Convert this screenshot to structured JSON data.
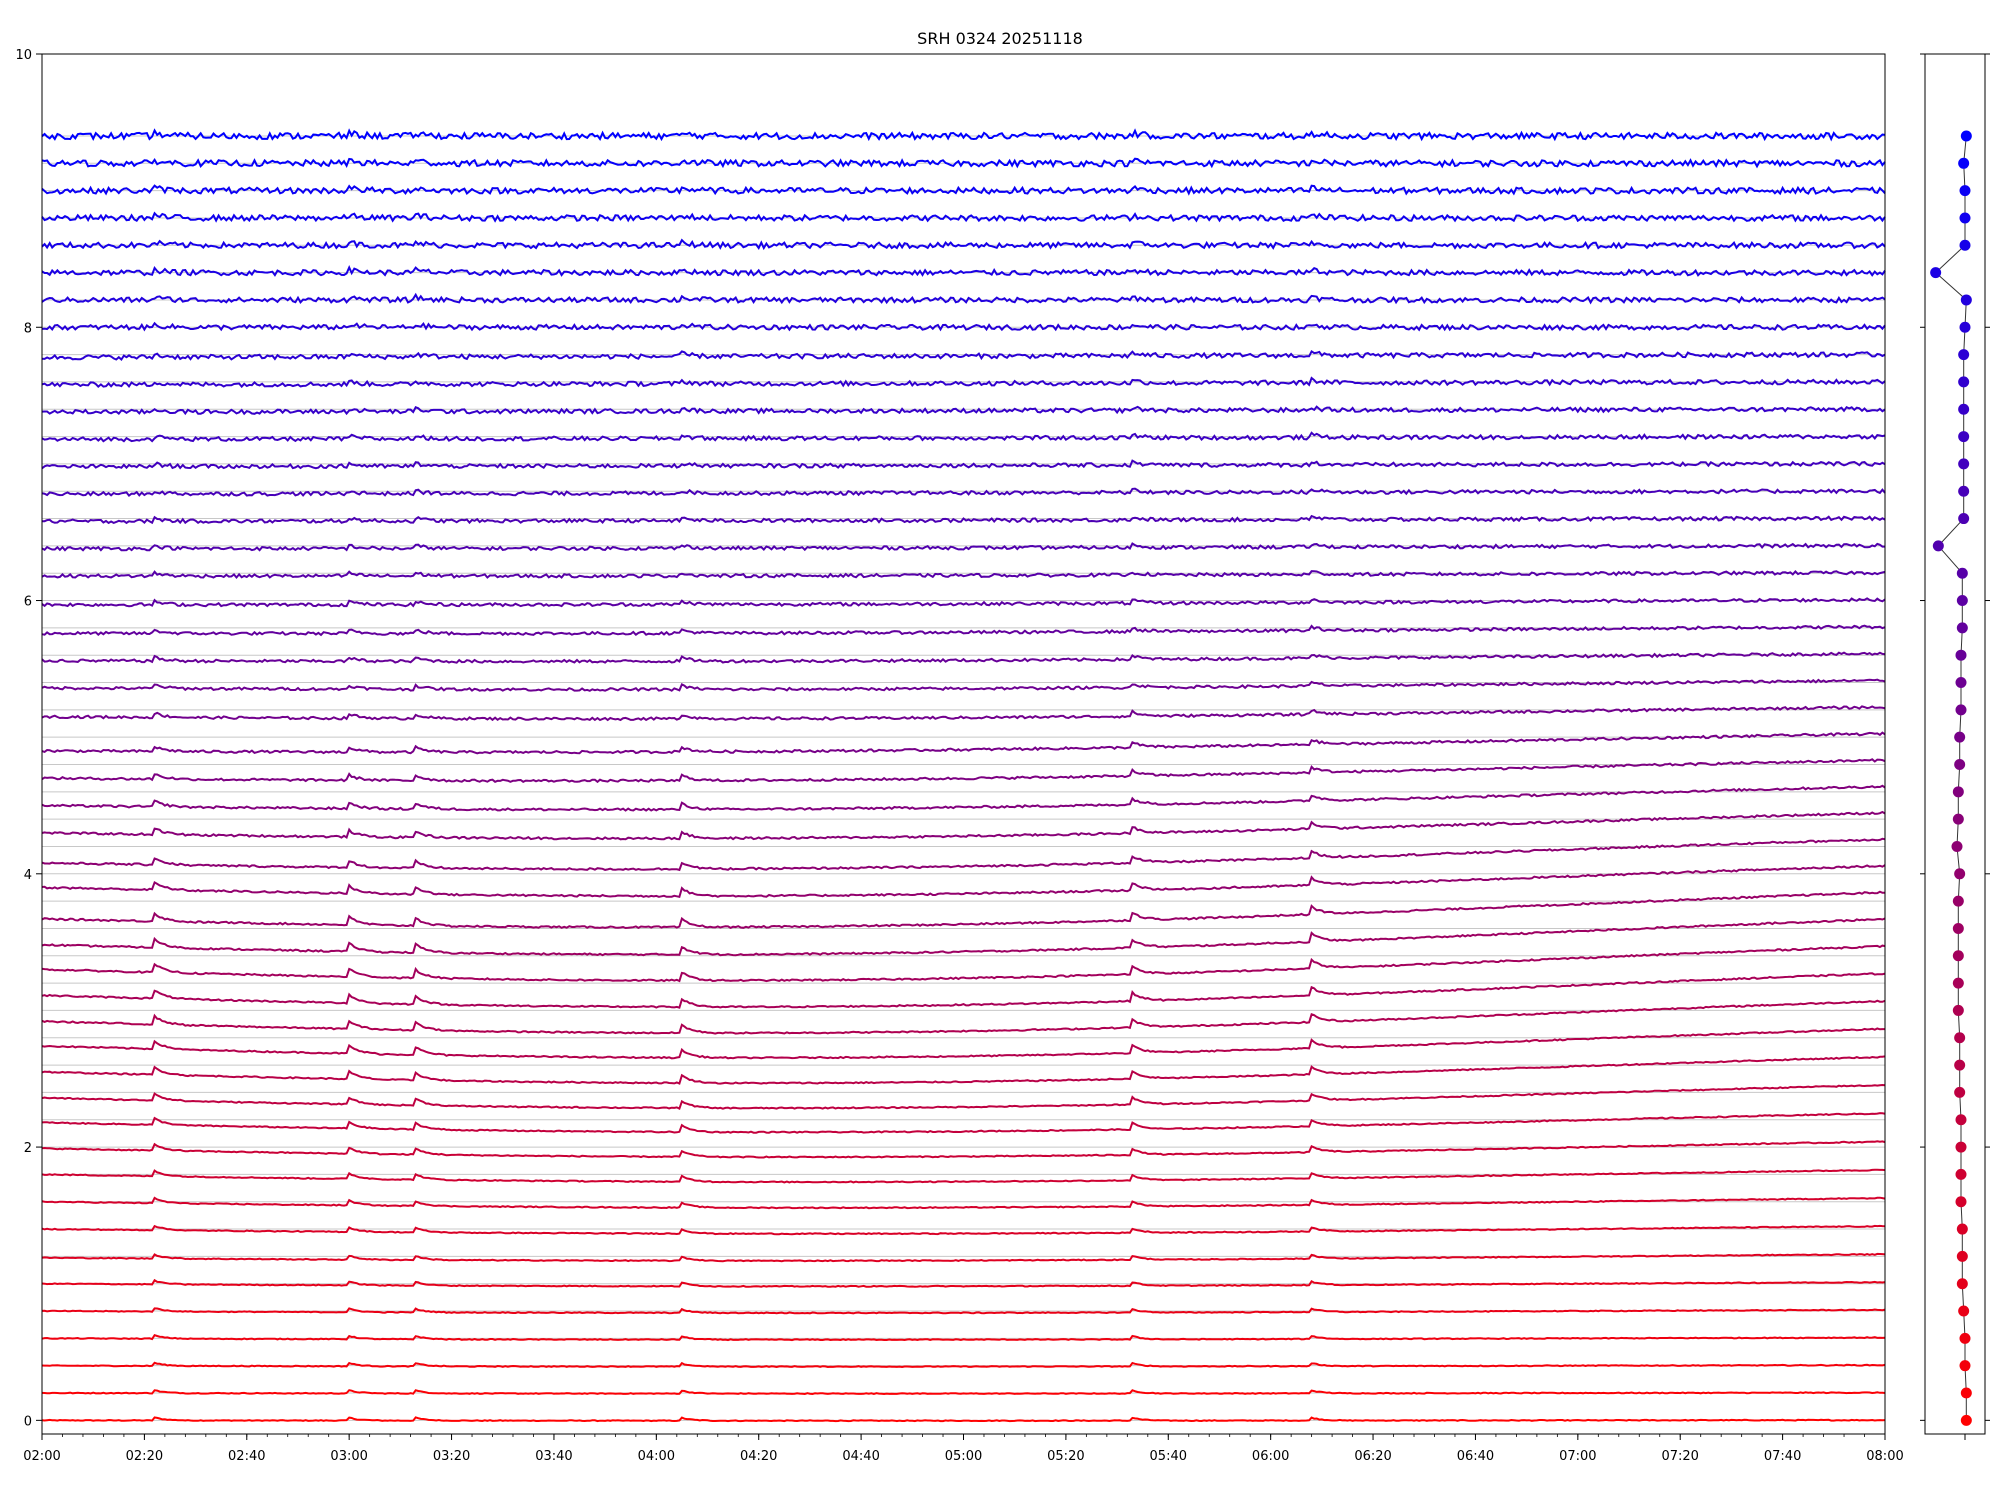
{
  "chart_data": [
    {
      "type": "line",
      "title": "SRH 0324 20251118",
      "xlabel": "",
      "ylabel": "",
      "x_range": [
        "02:00",
        "08:00"
      ],
      "x_tick_labels": [
        "02:00",
        "02:20",
        "02:40",
        "03:00",
        "03:20",
        "03:40",
        "04:00",
        "04:20",
        "04:40",
        "05:00",
        "05:20",
        "05:40",
        "06:00",
        "06:20",
        "06:40",
        "07:00",
        "07:20",
        "07:40",
        "08:00"
      ],
      "ylim": [
        -0.1,
        10
      ],
      "y_tick_labels": [
        "0",
        "2",
        "4",
        "6",
        "8",
        "10"
      ],
      "y_ticks": [
        0,
        2,
        4,
        6,
        8,
        10
      ],
      "grid": "horizontal lines at each trace baseline",
      "color_start": "#ff0000",
      "color_end": "#0000ff",
      "series_count": 48,
      "series_baselines": [
        0.0,
        0.2,
        0.4,
        0.6,
        0.8,
        1.0,
        1.2,
        1.4,
        1.6,
        1.8,
        2.0,
        2.2,
        2.4,
        2.6,
        2.8,
        3.0,
        3.2,
        3.4,
        3.6,
        3.8,
        4.0,
        4.2,
        4.4,
        4.6,
        4.8,
        5.0,
        5.2,
        5.4,
        5.6,
        5.8,
        6.0,
        6.2,
        6.4,
        6.6,
        6.8,
        7.0,
        7.2,
        7.4,
        7.6,
        7.8,
        8.0,
        8.2,
        8.4,
        8.6,
        8.8,
        9.0,
        9.2,
        9.4
      ],
      "series_offsets_at_start": [
        0.0,
        0.0,
        0.0,
        0.0,
        0.0,
        0.0,
        -0.01,
        0.0,
        0.0,
        0.0,
        -0.01,
        -0.02,
        -0.04,
        -0.05,
        -0.06,
        -0.08,
        -0.09,
        -0.1,
        -0.12,
        -0.13,
        -0.1,
        -0.12,
        -0.1,
        -0.1,
        -0.1,
        -0.1,
        -0.05,
        -0.04,
        -0.04,
        -0.04,
        -0.03,
        -0.02,
        -0.02,
        -0.02,
        -0.02,
        -0.02,
        -0.02,
        -0.02,
        -0.02,
        -0.02,
        0.0,
        0.0,
        0.0,
        0.0,
        0.0,
        0.0,
        0.0,
        0.0
      ],
      "event_times": [
        "02:22",
        "03:00",
        "03:13",
        "04:05",
        "05:33",
        "06:08"
      ],
      "noise_increases_with_baseline": true
    },
    {
      "type": "line",
      "title": "",
      "ylim": [
        -0.1,
        10
      ],
      "marker": "circle",
      "x_values": [
        0.01,
        0.01,
        0.0,
        0.0,
        -0.01,
        -0.02,
        -0.02,
        -0.02,
        -0.03,
        -0.03,
        -0.03,
        -0.03,
        -0.04,
        -0.04,
        -0.04,
        -0.05,
        -0.05,
        -0.05,
        -0.05,
        -0.05,
        -0.04,
        -0.06,
        -0.05,
        -0.05,
        -0.04,
        -0.04,
        -0.03,
        -0.03,
        -0.03,
        -0.02,
        -0.02,
        -0.02,
        -0.2,
        -0.01,
        -0.01,
        -0.01,
        -0.01,
        -0.01,
        -0.01,
        -0.01,
        0.0,
        0.01,
        -0.22,
        0.0,
        0.0,
        0.0,
        -0.01,
        0.01
      ],
      "y_values": [
        0.0,
        0.2,
        0.4,
        0.6,
        0.8,
        1.0,
        1.2,
        1.4,
        1.6,
        1.8,
        2.0,
        2.2,
        2.4,
        2.6,
        2.8,
        3.0,
        3.2,
        3.4,
        3.6,
        3.8,
        4.0,
        4.2,
        4.4,
        4.6,
        4.8,
        5.0,
        5.2,
        5.4,
        5.6,
        5.8,
        6.0,
        6.2,
        6.4,
        6.6,
        6.8,
        7.0,
        7.2,
        7.4,
        7.6,
        7.8,
        8.0,
        8.2,
        8.4,
        8.6,
        8.8,
        9.0,
        9.2,
        9.4
      ]
    }
  ]
}
